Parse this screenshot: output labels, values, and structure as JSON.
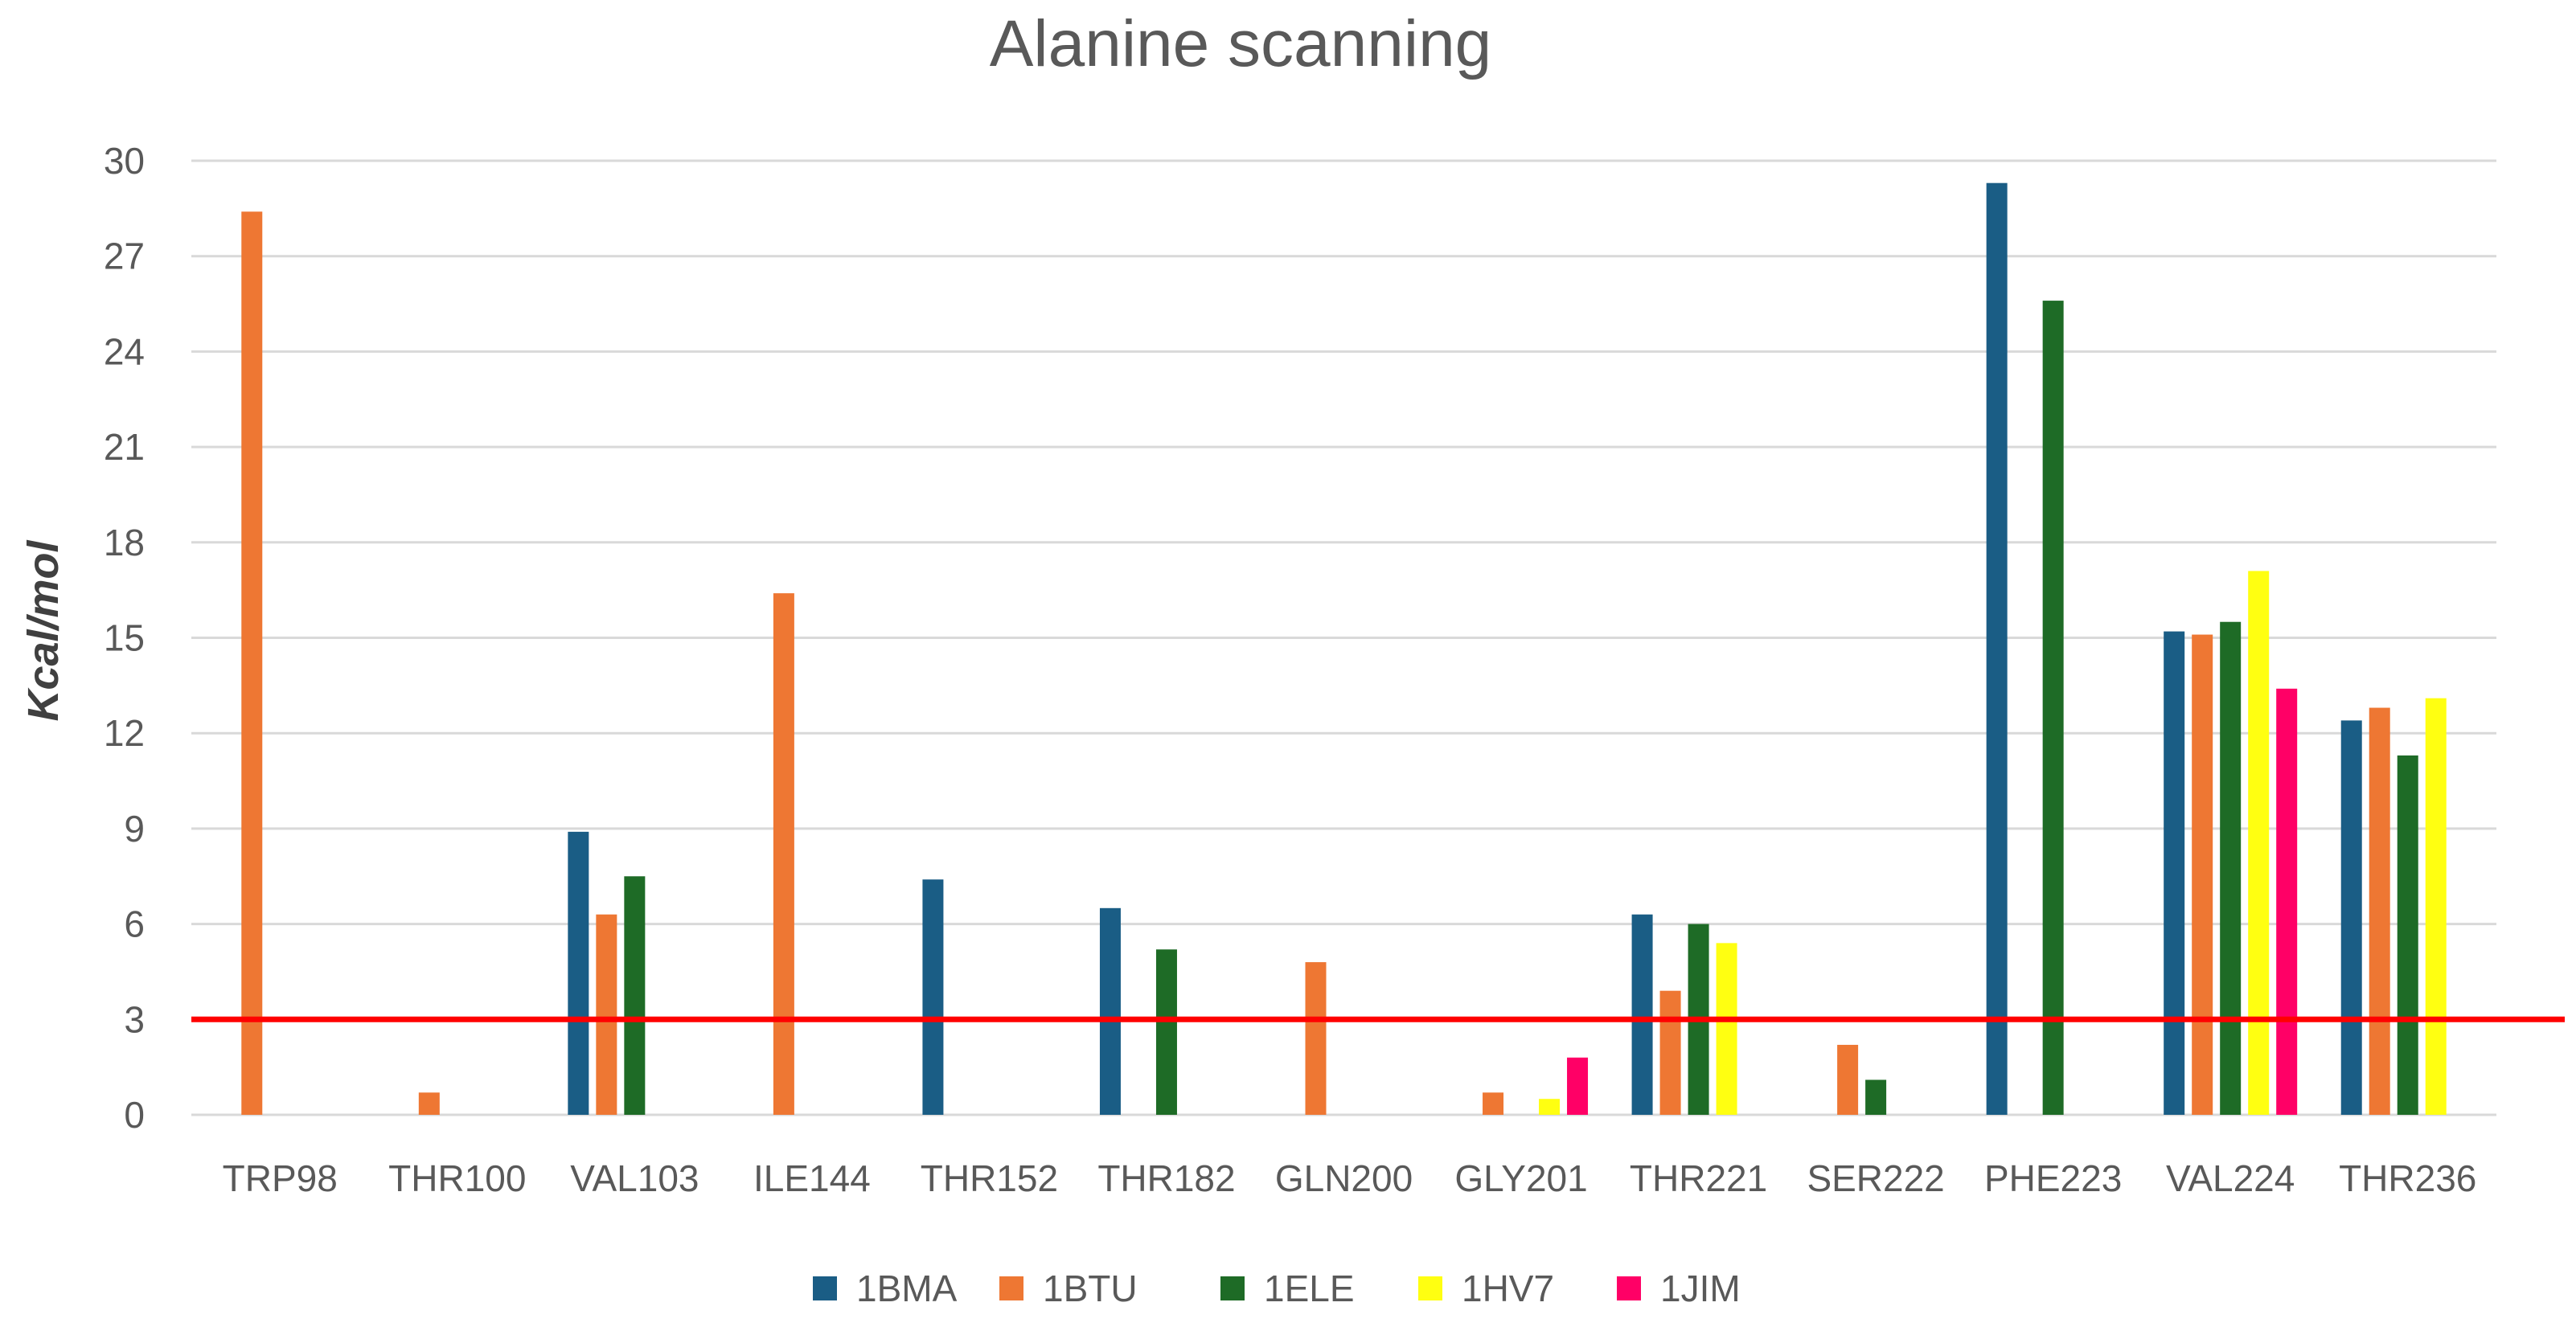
{
  "chart_data": {
    "type": "bar",
    "title": "Alanine scanning",
    "xlabel": "",
    "ylabel": "Kcal/mol",
    "ylim": [
      0,
      30
    ],
    "yticks": [
      0,
      3,
      6,
      9,
      12,
      15,
      18,
      21,
      24,
      27,
      30
    ],
    "grid": true,
    "legend_position": "bottom",
    "categories": [
      "TRP98",
      "THR100",
      "VAL103",
      "ILE144",
      "THR152",
      "THR182",
      "GLN200",
      "GLY201",
      "THR221",
      "SER222",
      "PHE223",
      "VAL224",
      "THR236"
    ],
    "series": [
      {
        "name": "1BMA",
        "color": "#1a5d85",
        "values": [
          0,
          0,
          8.9,
          0,
          7.4,
          6.5,
          0,
          0,
          6.3,
          0,
          29.3,
          15.2,
          12.4
        ]
      },
      {
        "name": "1BTU",
        "color": "#ee7733",
        "values": [
          28.4,
          0.7,
          6.3,
          16.4,
          0,
          0,
          4.8,
          0.7,
          3.9,
          2.2,
          0,
          15.1,
          12.8
        ]
      },
      {
        "name": "1ELE",
        "color": "#1e6b26",
        "values": [
          0,
          0,
          7.5,
          0,
          0,
          5.2,
          0,
          0,
          6.0,
          1.1,
          25.6,
          15.5,
          11.3
        ]
      },
      {
        "name": "1HV7",
        "color": "#ffff11",
        "values": [
          0,
          0,
          0,
          0,
          0,
          0,
          0,
          0.5,
          5.4,
          0,
          0,
          17.1,
          13.1
        ]
      },
      {
        "name": "1JIM",
        "color": "#ff0066",
        "values": [
          0,
          0,
          0,
          0,
          0,
          0,
          0,
          1.8,
          0,
          0,
          0,
          13.4,
          0
        ]
      }
    ],
    "reference_line": {
      "y": 3,
      "color": "#ff0000"
    }
  }
}
